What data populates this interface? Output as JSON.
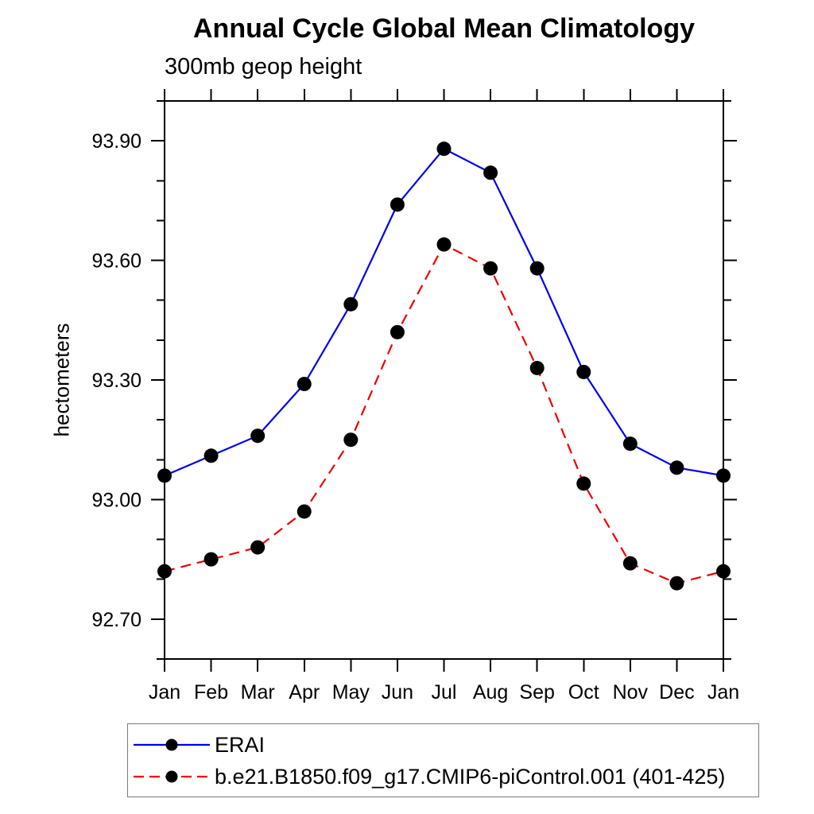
{
  "chart_data": {
    "type": "line",
    "title": "Annual Cycle Global Mean Climatology",
    "subtitle": "300mb geop height",
    "xlabel": "",
    "ylabel": "hectometers",
    "categories": [
      "Jan",
      "Feb",
      "Mar",
      "Apr",
      "May",
      "Jun",
      "Jul",
      "Aug",
      "Sep",
      "Oct",
      "Nov",
      "Dec",
      "Jan"
    ],
    "series": [
      {
        "name": "ERAI",
        "color": "#0000ee",
        "line_style": "solid",
        "marker": "circle",
        "marker_color": "#000000",
        "values": [
          93.06,
          93.11,
          93.16,
          93.29,
          93.49,
          93.74,
          93.88,
          93.82,
          93.58,
          93.32,
          93.14,
          93.08,
          93.06
        ]
      },
      {
        "name": "b.e21.B1850.f09_g17.CMIP6-piControl.001 (401-425)",
        "color": "#ee0000",
        "line_style": "dashed",
        "marker": "circle",
        "marker_color": "#000000",
        "values": [
          92.82,
          92.85,
          92.88,
          92.97,
          93.15,
          93.42,
          93.64,
          93.58,
          93.33,
          93.04,
          92.84,
          92.79,
          92.82
        ]
      }
    ],
    "y_axis": {
      "ylim": [
        92.6,
        94.0
      ],
      "major_tick_values": [
        92.7,
        93.0,
        93.3,
        93.6,
        93.9
      ],
      "major_tick_labels": [
        "92.70",
        "93.00",
        "93.30",
        "93.60",
        "93.90"
      ],
      "minor_tick_values": [
        92.6,
        92.8,
        92.9,
        93.1,
        93.2,
        93.4,
        93.5,
        93.7,
        93.8,
        94.0
      ]
    },
    "grid": false,
    "legend_position": "bottom-left-box",
    "axis_color": "#000000"
  }
}
